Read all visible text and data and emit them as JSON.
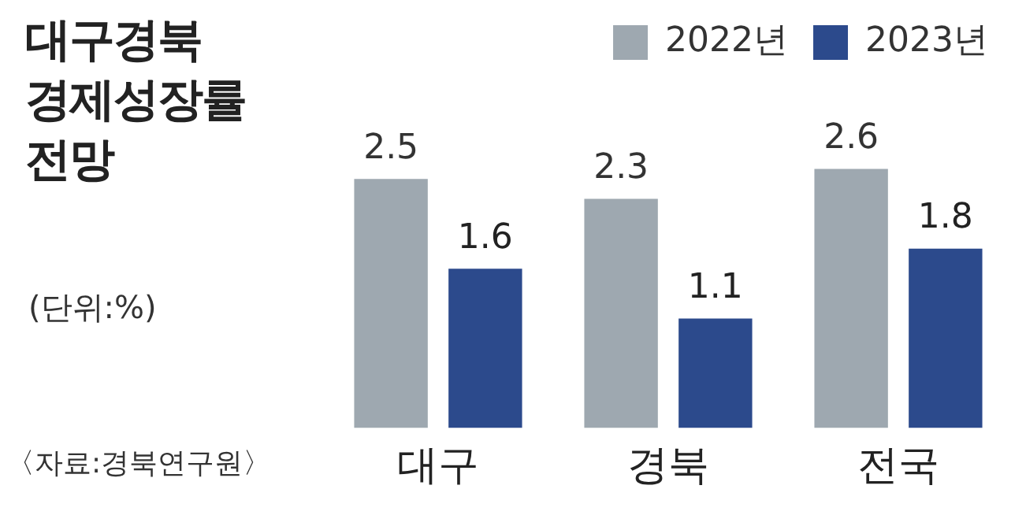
{
  "chart_data": {
    "type": "bar",
    "title": "대구경북 경제성장률 전망",
    "subtitle": "(단위:%)",
    "annotations": [
      "〈자료:경북연구원〉"
    ],
    "categories": [
      "대구",
      "경북",
      "전국"
    ],
    "series": [
      {
        "name": "2022년",
        "color": "#9ea8b0",
        "values": [
          2.5,
          2.3,
          2.6
        ]
      },
      {
        "name": "2023년",
        "color": "#2c4a8c",
        "values": [
          1.6,
          1.1,
          1.8
        ]
      }
    ],
    "data_labels": true,
    "legend": "top right",
    "grid": false
  }
}
